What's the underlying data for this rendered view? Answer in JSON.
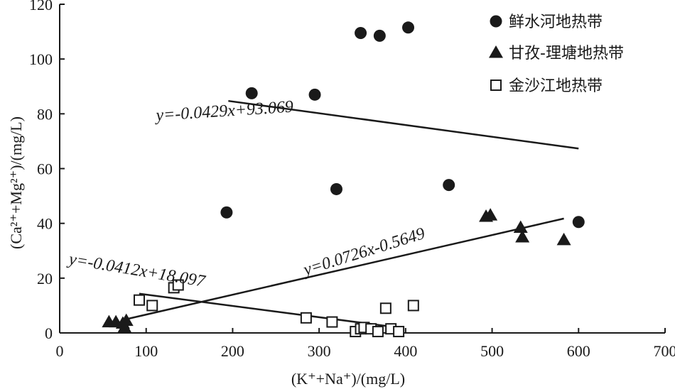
{
  "chart_data": {
    "type": "scatter",
    "xlabel": "(K⁺+Na⁺)/(mg/L)",
    "ylabel": "(Ca²⁺+Mg²⁺)/(mg/L)",
    "xlim": [
      0,
      700
    ],
    "ylim": [
      0,
      120
    ],
    "xticks": [
      0,
      100,
      200,
      300,
      400,
      500,
      600,
      700
    ],
    "yticks": [
      0,
      20,
      40,
      60,
      80,
      100,
      120
    ],
    "grid": false,
    "legend_position": "top-right",
    "series": [
      {
        "name": "鲜水河地热带",
        "marker": "filled-circle",
        "color": "#1a1a1a",
        "points": [
          [
            193,
            44
          ],
          [
            222,
            87.5
          ],
          [
            295,
            87
          ],
          [
            320,
            52.5
          ],
          [
            348,
            109.5
          ],
          [
            370,
            108.5
          ],
          [
            403,
            111.5
          ],
          [
            450,
            54
          ],
          [
            600,
            40.5
          ]
        ],
        "trendline": {
          "equation": "y=-0.0429x+93.069",
          "slope": -0.0429,
          "intercept": 93.069,
          "x_range": [
            195,
            600
          ]
        }
      },
      {
        "name": "甘孜-理塘地热带",
        "marker": "filled-triangle",
        "color": "#1a1a1a",
        "points": [
          [
            57,
            4
          ],
          [
            65,
            4
          ],
          [
            73,
            3.5
          ],
          [
            75,
            2
          ],
          [
            77,
            4.5
          ],
          [
            493,
            42.5
          ],
          [
            498,
            43
          ],
          [
            533,
            38.5
          ],
          [
            535,
            35
          ],
          [
            583,
            34
          ]
        ],
        "trendline": {
          "equation": "y=0.0726x-0.5649",
          "slope": 0.0726,
          "intercept": -0.5649,
          "x_range": [
            77,
            583
          ]
        }
      },
      {
        "name": "金沙江地热带",
        "marker": "open-square",
        "color": "#1a1a1a",
        "points": [
          [
            92,
            12
          ],
          [
            107,
            10
          ],
          [
            132,
            16.5
          ],
          [
            137,
            17.5
          ],
          [
            285,
            5.5
          ],
          [
            315,
            4
          ],
          [
            342,
            0.5
          ],
          [
            348,
            1.5
          ],
          [
            352,
            2
          ],
          [
            360,
            1.5
          ],
          [
            368,
            0.5
          ],
          [
            377,
            9
          ],
          [
            383,
            1.5
          ],
          [
            392,
            0.5
          ],
          [
            409,
            10
          ]
        ],
        "trendline": {
          "equation": "y=-0.0412x+18.097",
          "slope": -0.0412,
          "intercept": 18.097,
          "x_range": [
            92,
            392
          ]
        }
      }
    ]
  }
}
